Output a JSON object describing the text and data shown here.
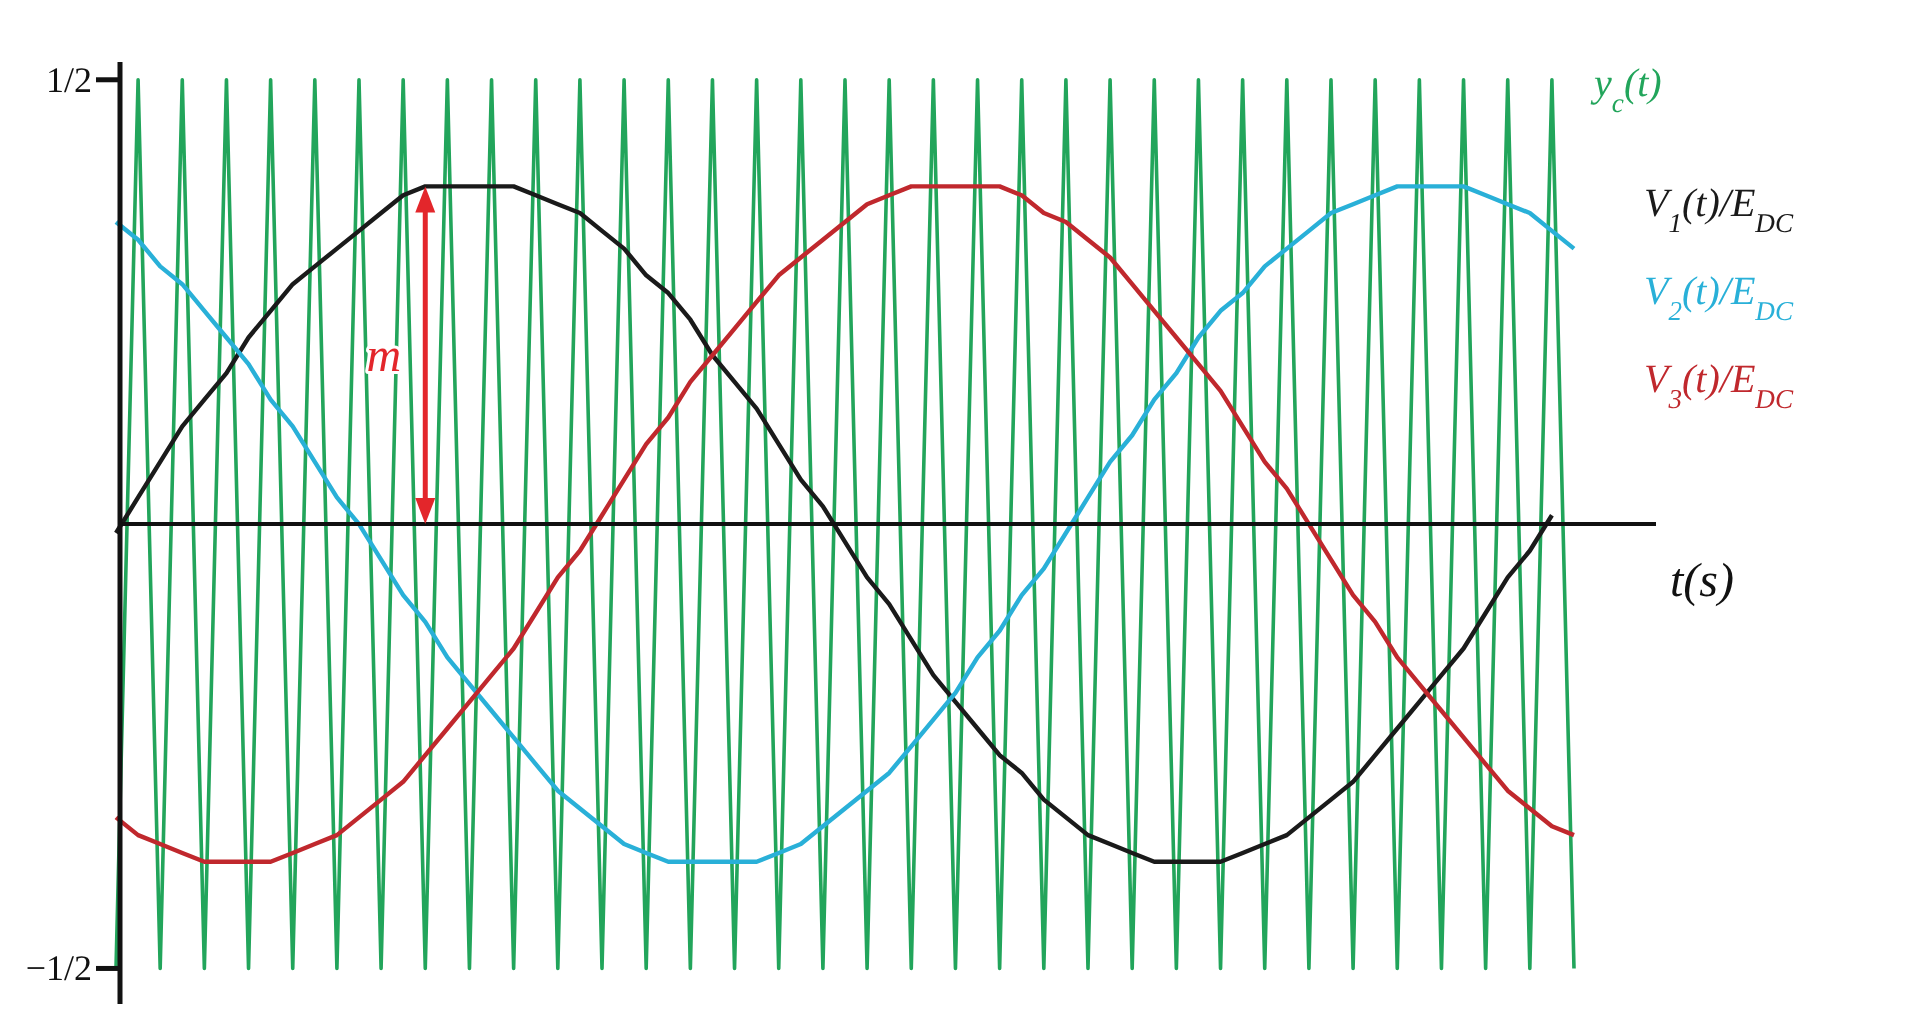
{
  "chart_data": {
    "type": "line",
    "xlabel": "t(s)",
    "tick_labels": "y",
    "marker": "none",
    "line_style": "solid",
    "categories": [
      null,
      null,
      null,
      null,
      null,
      null,
      null,
      null,
      null,
      null,
      null,
      null,
      null,
      null,
      null,
      null,
      null,
      null,
      null,
      null,
      null,
      null,
      null,
      null,
      null,
      null,
      null,
      null,
      null,
      null,
      null,
      null,
      null,
      null,
      null,
      null,
      null,
      null,
      null,
      null,
      null,
      null,
      null,
      null,
      null,
      null,
      null,
      null,
      null,
      null,
      null,
      null,
      null,
      null,
      null,
      null,
      null,
      null,
      null,
      null,
      null,
      null,
      null,
      null,
      null,
      null,
      null
    ],
    "ylim": [
      -0.54,
      0.52
    ],
    "yticks": [
      {
        "value": -0.5,
        "label": "−1/2"
      },
      {
        "value": 0.5,
        "label": "1/2"
      }
    ],
    "annotations": [
      "m"
    ],
    "series": [
      {
        "name": "y$_{c}$(t)",
        "color": "#22a55b",
        "values": [
          -0.5,
          0.5,
          -0.5,
          0.5,
          -0.5,
          0.5,
          -0.5,
          0.5,
          -0.5,
          0.5,
          -0.5,
          0.5,
          -0.5,
          0.5,
          -0.5,
          0.5,
          -0.5,
          0.5,
          -0.5,
          0.5,
          -0.5,
          0.5,
          -0.5,
          0.5,
          -0.5,
          0.5,
          -0.5,
          0.5,
          -0.5,
          0.5,
          -0.5,
          0.5,
          -0.5,
          0.5,
          -0.5,
          0.5,
          -0.5,
          0.5,
          -0.5,
          0.5,
          -0.5,
          0.5,
          -0.5,
          0.5,
          -0.5,
          0.5,
          -0.5,
          0.5,
          -0.5,
          0.5,
          -0.5,
          0.5,
          -0.5,
          0.5,
          -0.5,
          0.5,
          -0.5,
          0.5,
          -0.5,
          0.5,
          -0.5,
          0.5,
          -0.5,
          0.5,
          -0.5,
          0.5,
          -0.5
        ]
      },
      {
        "name": "V$_{1}$(t)/E$_{DC}$",
        "color": "#1a1a1a",
        "values": [
          -0.01,
          0.03,
          0.07,
          0.11,
          0.14,
          0.17,
          0.21,
          0.24,
          0.27,
          0.29,
          0.31,
          0.33,
          0.35,
          0.37,
          0.38,
          0.38,
          0.38,
          0.38,
          0.38,
          0.37,
          0.36,
          0.35,
          0.33,
          0.31,
          0.28,
          0.26,
          0.23,
          0.19,
          0.16,
          0.13,
          0.09,
          0.05,
          0.02,
          -0.02,
          -0.06,
          -0.09,
          -0.13,
          -0.17,
          -0.2,
          -0.23,
          -0.26,
          -0.28,
          -0.31,
          -0.33,
          -0.35,
          -0.36,
          -0.37,
          -0.38,
          -0.38,
          -0.38,
          -0.38,
          -0.37,
          -0.36,
          -0.35,
          -0.33,
          -0.31,
          -0.29,
          -0.26,
          -0.23,
          -0.2,
          -0.17,
          -0.14,
          -0.1,
          -0.06,
          -0.03,
          0.01,
          null
        ]
      },
      {
        "name": "V$_{2}$(t)/E$_{DC}$",
        "color": "#29b0d8",
        "values": [
          0.34,
          0.32,
          0.29,
          0.27,
          0.24,
          0.21,
          0.18,
          0.14,
          0.11,
          0.07,
          0.03,
          0.0,
          -0.04,
          -0.08,
          -0.11,
          -0.15,
          -0.18,
          -0.21,
          -0.24,
          -0.27,
          -0.3,
          -0.32,
          -0.34,
          -0.36,
          -0.37,
          -0.38,
          -0.38,
          -0.38,
          -0.38,
          -0.38,
          -0.37,
          -0.36,
          -0.34,
          -0.32,
          -0.3,
          -0.28,
          -0.25,
          -0.22,
          -0.19,
          -0.15,
          -0.12,
          -0.08,
          -0.05,
          -0.01,
          0.03,
          0.07,
          0.1,
          0.14,
          0.17,
          0.21,
          0.24,
          0.26,
          0.29,
          0.31,
          0.33,
          0.35,
          0.36,
          0.37,
          0.38,
          0.38,
          0.38,
          0.38,
          0.37,
          0.36,
          0.35,
          0.33,
          0.31
        ]
      },
      {
        "name": "V$_{3}$(t)/E$_{DC}$",
        "color": "#c0282d",
        "values": [
          -0.33,
          -0.35,
          -0.36,
          -0.37,
          -0.38,
          -0.38,
          -0.38,
          -0.38,
          -0.37,
          -0.36,
          -0.35,
          -0.33,
          -0.31,
          -0.29,
          -0.26,
          -0.23,
          -0.2,
          -0.17,
          -0.14,
          -0.1,
          -0.06,
          -0.03,
          0.01,
          0.05,
          0.09,
          0.12,
          0.16,
          0.19,
          0.22,
          0.25,
          0.28,
          0.3,
          0.32,
          0.34,
          0.36,
          0.37,
          0.38,
          0.38,
          0.38,
          0.38,
          0.38,
          0.37,
          0.35,
          0.34,
          0.32,
          0.3,
          0.27,
          0.24,
          0.21,
          0.18,
          0.15,
          0.11,
          0.07,
          0.04,
          0.0,
          -0.04,
          -0.08,
          -0.11,
          -0.15,
          -0.18,
          -0.21,
          -0.24,
          -0.27,
          -0.3,
          -0.32,
          -0.34,
          -0.35
        ]
      }
    ]
  }
}
